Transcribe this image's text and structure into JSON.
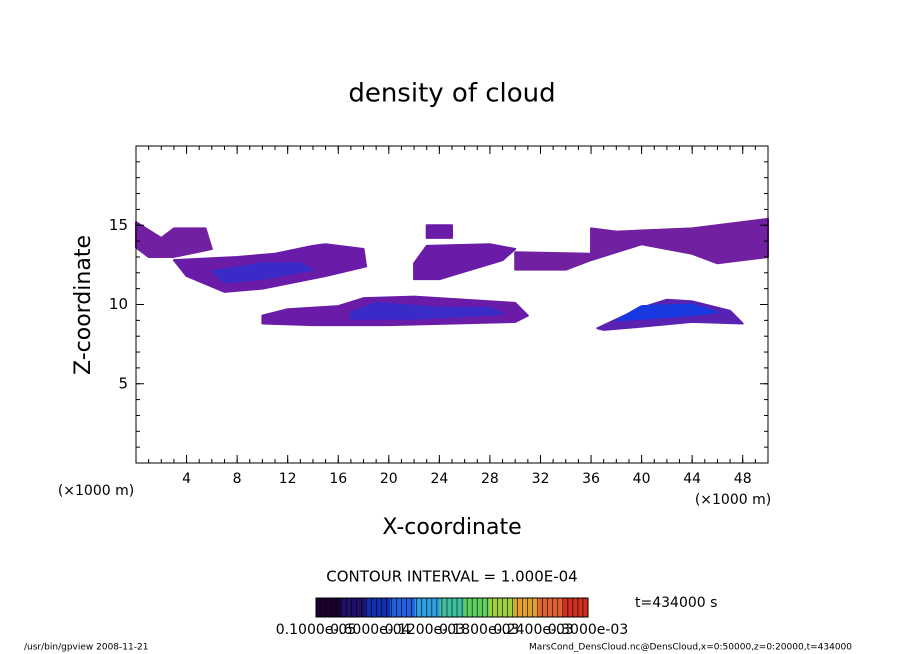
{
  "chart_data": {
    "type": "contour",
    "title": "density of cloud",
    "x_label": "X-coordinate",
    "y_label": "Z-coordinate",
    "x_unit": "(×1000 m)",
    "y_unit": "(×1000 m)",
    "xlim": [
      0,
      50
    ],
    "xticks": [
      4,
      8,
      12,
      16,
      20,
      24,
      28,
      32,
      36,
      40,
      44,
      48
    ],
    "ylim": [
      0,
      20
    ],
    "yticks": [
      5,
      10,
      15
    ],
    "contour_interval": "CONTOUR INTERVAL = 1.000E-04",
    "time_label": "t=434000 s",
    "colorbar": {
      "colors": [
        "#1a0030",
        "#20106a",
        "#1030b0",
        "#2060e0",
        "#30a0e0",
        "#40c0a0",
        "#60d060",
        "#a0d040",
        "#e0a030",
        "#e06030",
        "#d03020"
      ],
      "labels": [
        "0.1000e-05",
        "0.6000e-04",
        "0.1200e-03",
        "0.1800e-03",
        "0.2400e-03",
        "0.3000e-03"
      ]
    },
    "regions": [
      {
        "color": "#7020a0",
        "value": 5e-05,
        "x": [
          0,
          2,
          3,
          5.5,
          6,
          3,
          1,
          0
        ],
        "z": [
          15.2,
          14.2,
          14.8,
          14.8,
          13.5,
          13,
          13,
          13.6
        ]
      },
      {
        "color": "#6a1ca8",
        "value": 5e-05,
        "x": [
          3,
          8,
          11,
          14,
          15,
          18,
          18.2,
          15,
          10,
          7,
          4
        ],
        "z": [
          12.8,
          13,
          13.2,
          13.7,
          13.8,
          13.5,
          12.4,
          11.8,
          11,
          10.8,
          11.8
        ]
      },
      {
        "color": "#3a2ac8",
        "value": 0.00012,
        "x": [
          6,
          10,
          13,
          14,
          10,
          7
        ],
        "z": [
          12.1,
          12.6,
          12.6,
          12.2,
          11.6,
          11.4
        ]
      },
      {
        "color": "#6a1ca8",
        "value": 5e-05,
        "x": [
          10,
          12,
          16,
          18,
          22,
          26,
          30,
          31,
          30,
          20,
          14,
          10
        ],
        "z": [
          9.3,
          9.7,
          9.9,
          10.4,
          10.5,
          10.3,
          10.1,
          9.3,
          8.9,
          8.7,
          8.7,
          8.8
        ]
      },
      {
        "color": "#3a2ac8",
        "value": 0.00012,
        "x": [
          17,
          19,
          24,
          28,
          29,
          22,
          17
        ],
        "z": [
          9.5,
          10.1,
          9.8,
          9.8,
          9.4,
          9.1,
          9.1
        ]
      },
      {
        "color": "#6a1ca8",
        "value": 5e-05,
        "x": [
          22,
          23,
          28,
          30,
          29,
          24,
          22
        ],
        "z": [
          12.6,
          13.7,
          13.8,
          13.5,
          12.8,
          11.6,
          11.6
        ]
      },
      {
        "color": "#6a1ca8",
        "value": 5e-05,
        "x": [
          23,
          25,
          25,
          23
        ],
        "z": [
          14.2,
          14.2,
          15,
          15
        ]
      },
      {
        "color": "#7020a0",
        "value": 5e-05,
        "x": [
          30,
          36,
          36,
          38,
          44,
          50,
          50,
          46,
          44,
          40,
          36,
          34,
          30
        ],
        "z": [
          13.3,
          13.2,
          14.8,
          14.6,
          14.8,
          15.4,
          13,
          12.6,
          13.2,
          13.8,
          12.8,
          12.2,
          12.2
        ]
      },
      {
        "color": "#5a22b0",
        "value": 5e-05,
        "x": [
          36.5,
          40,
          42,
          44,
          47,
          48,
          44,
          40,
          37
        ],
        "z": [
          8.5,
          9.8,
          10.3,
          10.2,
          9.6,
          8.8,
          8.9,
          8.6,
          8.4
        ]
      },
      {
        "color": "#1838e0",
        "value": 0.00018,
        "x": [
          38,
          40,
          44,
          46,
          42
        ],
        "z": [
          9,
          9.9,
          10,
          9.5,
          9.2
        ]
      }
    ],
    "footer_left": "/usr/bin/gpview   2008-11-21",
    "footer_right": "MarsCond_DensCloud.nc@DensCloud,x=0:50000,z=0:20000,t=434000"
  }
}
